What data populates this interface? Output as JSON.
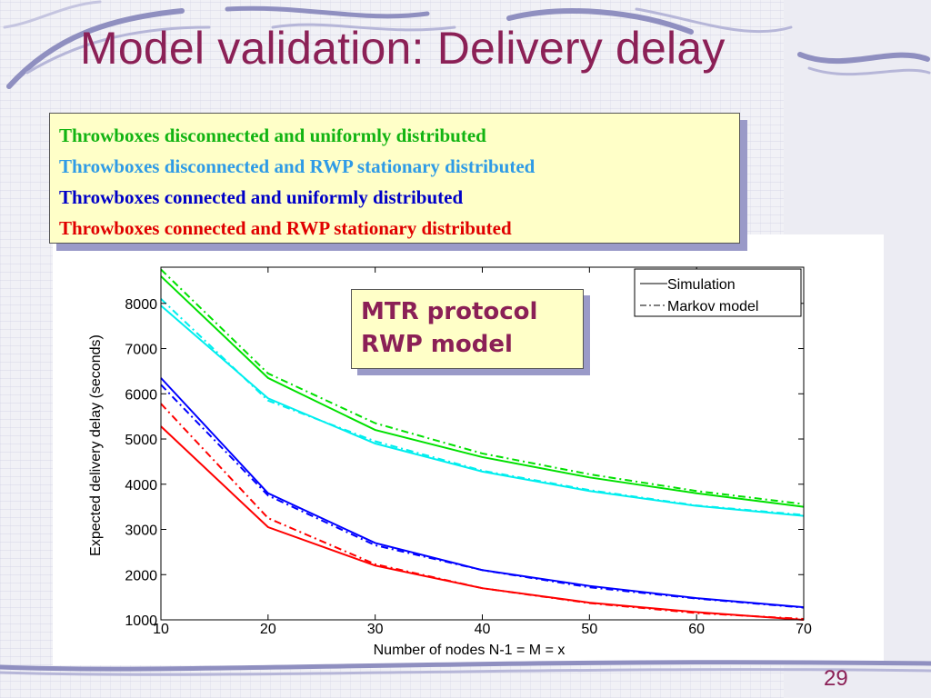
{
  "slide": {
    "title": "Model validation: Delivery delay",
    "page_number": "29"
  },
  "legend_box": {
    "lines": [
      {
        "text": "Throwboxes disconnected and uniformly distributed",
        "color": "#12b412"
      },
      {
        "text": "Throwboxes disconnected and RWP stationary distributed",
        "color": "#2f9be6"
      },
      {
        "text": "Throwboxes connected and uniformly distributed",
        "color": "#0000c8"
      },
      {
        "text": "Throwboxes connected and RWP stationary distributed",
        "color": "#e00000"
      }
    ]
  },
  "note_box": {
    "line1": "MTR protocol",
    "line2": "RWP model"
  },
  "chart_data": {
    "type": "line",
    "xlabel": "Number of nodes N-1 = M = x",
    "ylabel": "Expected delivery delay (seconds)",
    "xlim": [
      10,
      70
    ],
    "ylim": [
      1000,
      8800
    ],
    "xticks": [
      10,
      20,
      30,
      40,
      50,
      60,
      70
    ],
    "yticks": [
      1000,
      2000,
      3000,
      4000,
      5000,
      6000,
      7000,
      8000
    ],
    "grid": false,
    "legend_position": "top-right",
    "legend": [
      {
        "label": "Simulation",
        "style": "solid"
      },
      {
        "label": "Markov model",
        "style": "dashdot"
      }
    ],
    "x": [
      10,
      20,
      30,
      40,
      50,
      60,
      70
    ],
    "series": [
      {
        "color": "#00e000",
        "style": "solid",
        "values": [
          8600,
          6350,
          5200,
          4600,
          4150,
          3800,
          3500
        ]
      },
      {
        "color": "#00e000",
        "style": "dashdot",
        "values": [
          8750,
          6450,
          5350,
          4680,
          4220,
          3850,
          3560
        ]
      },
      {
        "color": "#00eeee",
        "style": "solid",
        "values": [
          7950,
          5900,
          4900,
          4280,
          3850,
          3520,
          3300
        ]
      },
      {
        "color": "#00eeee",
        "style": "dashdot",
        "values": [
          8100,
          5850,
          4950,
          4300,
          3870,
          3530,
          3320
        ]
      },
      {
        "color": "#0000ff",
        "style": "solid",
        "values": [
          6350,
          3800,
          2700,
          2100,
          1750,
          1480,
          1280
        ]
      },
      {
        "color": "#0000ff",
        "style": "dashdot",
        "values": [
          6200,
          3750,
          2650,
          2100,
          1720,
          1470,
          1270
        ]
      },
      {
        "color": "#ff0000",
        "style": "solid",
        "values": [
          5280,
          3050,
          2200,
          1700,
          1380,
          1170,
          1000
        ]
      },
      {
        "color": "#ff0000",
        "style": "dashdot",
        "values": [
          5780,
          3250,
          2230,
          1700,
          1370,
          1150,
          1020
        ]
      }
    ]
  }
}
